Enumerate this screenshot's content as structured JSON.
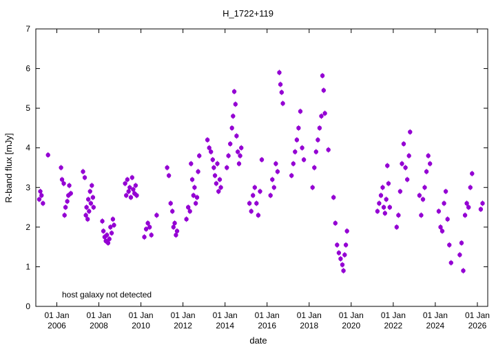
{
  "chart_data": {
    "type": "scatter",
    "title": "H_1722+119",
    "xlabel": "date",
    "ylabel": "R-band flux [mJy]",
    "ylim": [
      0,
      7
    ],
    "xlim": [
      "2005-01-01",
      "2026-06-30"
    ],
    "yticks": [
      0,
      1,
      2,
      3,
      4,
      5,
      6,
      7
    ],
    "xticks": [
      {
        "date": "2006-01-01",
        "line1": "01 Jan",
        "line2": "2006"
      },
      {
        "date": "2008-01-01",
        "line1": "01 Jan",
        "line2": "2008"
      },
      {
        "date": "2010-01-01",
        "line1": "01 Jan",
        "line2": "2010"
      },
      {
        "date": "2012-01-01",
        "line1": "01 Jan",
        "line2": "2012"
      },
      {
        "date": "2014-01-01",
        "line1": "01 Jan",
        "line2": "2014"
      },
      {
        "date": "2016-01-01",
        "line1": "01 Jan",
        "line2": "2016"
      },
      {
        "date": "2018-01-01",
        "line1": "01 Jan",
        "line2": "2018"
      },
      {
        "date": "2020-01-01",
        "line1": "01 Jan",
        "line2": "2020"
      },
      {
        "date": "2022-01-01",
        "line1": "01 Jan",
        "line2": "2022"
      },
      {
        "date": "2024-01-01",
        "line1": "01 Jan",
        "line2": "2024"
      },
      {
        "date": "2026-01-01",
        "line1": "01 Jan",
        "line2": "2026"
      }
    ],
    "annotation": "host galaxy not detected",
    "grid": false,
    "legend": "none",
    "marker_color": "#9400D3",
    "series": [
      {
        "x": [
          "2005-03-01",
          "2005-03-20",
          "2005-04-10",
          "2005-05-05",
          "2005-08-01",
          "2006-03-15",
          "2006-04-01",
          "2006-05-01",
          "2006-05-15",
          "2006-06-01",
          "2006-07-01",
          "2006-07-20",
          "2006-08-05",
          "2006-09-01",
          "2007-04-01",
          "2007-05-01",
          "2007-05-20",
          "2007-06-01",
          "2007-06-20",
          "2007-07-01",
          "2007-07-15",
          "2007-08-01",
          "2007-08-15",
          "2007-09-01",
          "2007-09-20",
          "2007-10-01",
          "2008-03-01",
          "2008-03-20",
          "2008-04-10",
          "2008-05-01",
          "2008-05-20",
          "2008-06-10",
          "2008-07-01",
          "2008-07-20",
          "2008-08-10",
          "2008-09-01",
          "2008-09-20",
          "2009-04-01",
          "2009-04-20",
          "2009-05-10",
          "2009-06-01",
          "2009-06-20",
          "2009-07-10",
          "2009-08-01",
          "2009-08-20",
          "2009-09-10",
          "2009-10-01",
          "2009-10-20",
          "2010-03-01",
          "2010-04-01",
          "2010-05-01",
          "2010-06-01",
          "2010-07-01",
          "2010-10-01",
          "2011-04-01",
          "2011-05-01",
          "2011-06-01",
          "2011-07-01",
          "2011-07-20",
          "2011-08-10",
          "2011-09-01",
          "2011-09-20",
          "2012-03-01",
          "2012-04-01",
          "2012-05-01",
          "2012-05-20",
          "2012-06-10",
          "2012-07-01",
          "2012-07-20",
          "2012-08-10",
          "2012-09-01",
          "2012-09-20",
          "2012-10-10",
          "2013-03-01",
          "2013-04-01",
          "2013-05-01",
          "2013-06-01",
          "2013-06-20",
          "2013-07-10",
          "2013-08-01",
          "2013-08-20",
          "2013-09-10",
          "2013-10-01",
          "2013-10-20",
          "2014-02-01",
          "2014-03-01",
          "2014-04-01",
          "2014-05-01",
          "2014-05-20",
          "2014-06-10",
          "2014-07-01",
          "2014-07-20",
          "2014-08-10",
          "2014-09-01",
          "2014-09-20",
          "2014-10-10",
          "2015-03-01",
          "2015-04-01",
          "2015-05-01",
          "2015-06-01",
          "2015-07-01",
          "2015-08-01",
          "2015-09-01",
          "2015-10-01",
          "2016-03-01",
          "2016-04-01",
          "2016-05-01",
          "2016-06-01",
          "2016-07-01",
          "2016-08-01",
          "2016-08-20",
          "2016-09-10",
          "2016-10-01",
          "2017-03-01",
          "2017-04-01",
          "2017-05-01",
          "2017-06-01",
          "2017-07-01",
          "2017-08-01",
          "2017-09-01",
          "2017-10-01",
          "2018-03-01",
          "2018-04-01",
          "2018-05-01",
          "2018-06-01",
          "2018-07-01",
          "2018-08-01",
          "2018-08-20",
          "2018-09-10",
          "2018-10-01",
          "2018-12-01",
          "2019-03-01",
          "2019-04-01",
          "2019-05-01",
          "2019-06-01",
          "2019-07-01",
          "2019-08-01",
          "2019-08-20",
          "2019-09-10",
          "2019-10-01",
          "2019-10-20",
          "2021-04-01",
          "2021-05-01",
          "2021-06-01",
          "2021-07-01",
          "2021-07-20",
          "2021-08-10",
          "2021-09-01",
          "2021-09-20",
          "2021-10-10",
          "2021-11-01",
          "2022-03-01",
          "2022-04-01",
          "2022-05-01",
          "2022-06-01",
          "2022-07-01",
          "2022-08-01",
          "2022-09-01",
          "2022-10-01",
          "2022-10-20",
          "2023-04-01",
          "2023-05-01",
          "2023-06-01",
          "2023-07-01",
          "2023-08-01",
          "2023-09-01",
          "2023-10-01",
          "2024-03-01",
          "2024-04-01",
          "2024-05-01",
          "2024-06-01",
          "2024-07-01",
          "2024-08-01",
          "2024-09-01",
          "2024-10-01",
          "2025-03-01",
          "2025-04-01",
          "2025-05-01",
          "2025-06-01",
          "2025-07-01",
          "2025-08-01",
          "2025-09-01",
          "2025-10-01",
          "2026-03-01",
          "2026-04-01"
        ],
        "y": [
          2.7,
          2.9,
          2.8,
          2.6,
          3.82,
          3.5,
          3.2,
          3.1,
          2.3,
          2.5,
          2.65,
          2.8,
          3.05,
          2.85,
          3.4,
          3.25,
          2.3,
          2.5,
          2.2,
          2.7,
          2.4,
          2.9,
          2.6,
          3.05,
          2.75,
          2.5,
          2.15,
          1.9,
          1.75,
          1.65,
          1.8,
          1.6,
          1.7,
          2.0,
          1.85,
          2.2,
          2.05,
          3.1,
          2.8,
          3.2,
          2.9,
          3.0,
          2.75,
          3.25,
          2.95,
          2.85,
          3.05,
          2.8,
          1.75,
          1.95,
          2.1,
          2.0,
          1.8,
          2.3,
          3.5,
          3.3,
          2.6,
          2.4,
          2.0,
          2.1,
          1.8,
          1.9,
          2.2,
          2.5,
          2.4,
          3.6,
          3.2,
          2.8,
          3.0,
          2.6,
          2.75,
          3.4,
          3.8,
          4.2,
          4.0,
          3.9,
          3.7,
          3.5,
          3.3,
          3.1,
          3.6,
          2.9,
          3.2,
          3.0,
          3.5,
          3.8,
          4.1,
          4.5,
          4.8,
          5.42,
          5.1,
          4.3,
          3.9,
          3.6,
          3.8,
          4.0,
          2.6,
          2.4,
          2.8,
          3.0,
          2.6,
          2.3,
          2.9,
          3.7,
          2.8,
          3.2,
          3.0,
          3.6,
          3.4,
          5.9,
          5.6,
          5.4,
          5.12,
          3.3,
          3.6,
          3.9,
          4.2,
          4.5,
          4.92,
          4.0,
          3.7,
          3.0,
          3.5,
          3.9,
          4.2,
          4.5,
          4.8,
          5.82,
          5.45,
          4.87,
          3.95,
          2.75,
          2.1,
          1.55,
          1.35,
          1.2,
          1.05,
          0.9,
          1.3,
          1.55,
          1.9,
          2.4,
          2.6,
          2.8,
          3.0,
          2.5,
          2.35,
          2.7,
          3.55,
          3.1,
          2.5,
          2.0,
          2.3,
          2.9,
          3.6,
          4.1,
          3.5,
          3.2,
          3.8,
          4.4,
          2.8,
          2.3,
          2.7,
          3.0,
          3.4,
          3.8,
          3.6,
          2.4,
          2.0,
          1.9,
          2.6,
          2.9,
          2.2,
          1.55,
          1.1,
          1.3,
          1.6,
          0.9,
          2.3,
          2.6,
          2.5,
          3.0,
          3.35,
          2.45,
          2.6
        ]
      }
    ]
  }
}
